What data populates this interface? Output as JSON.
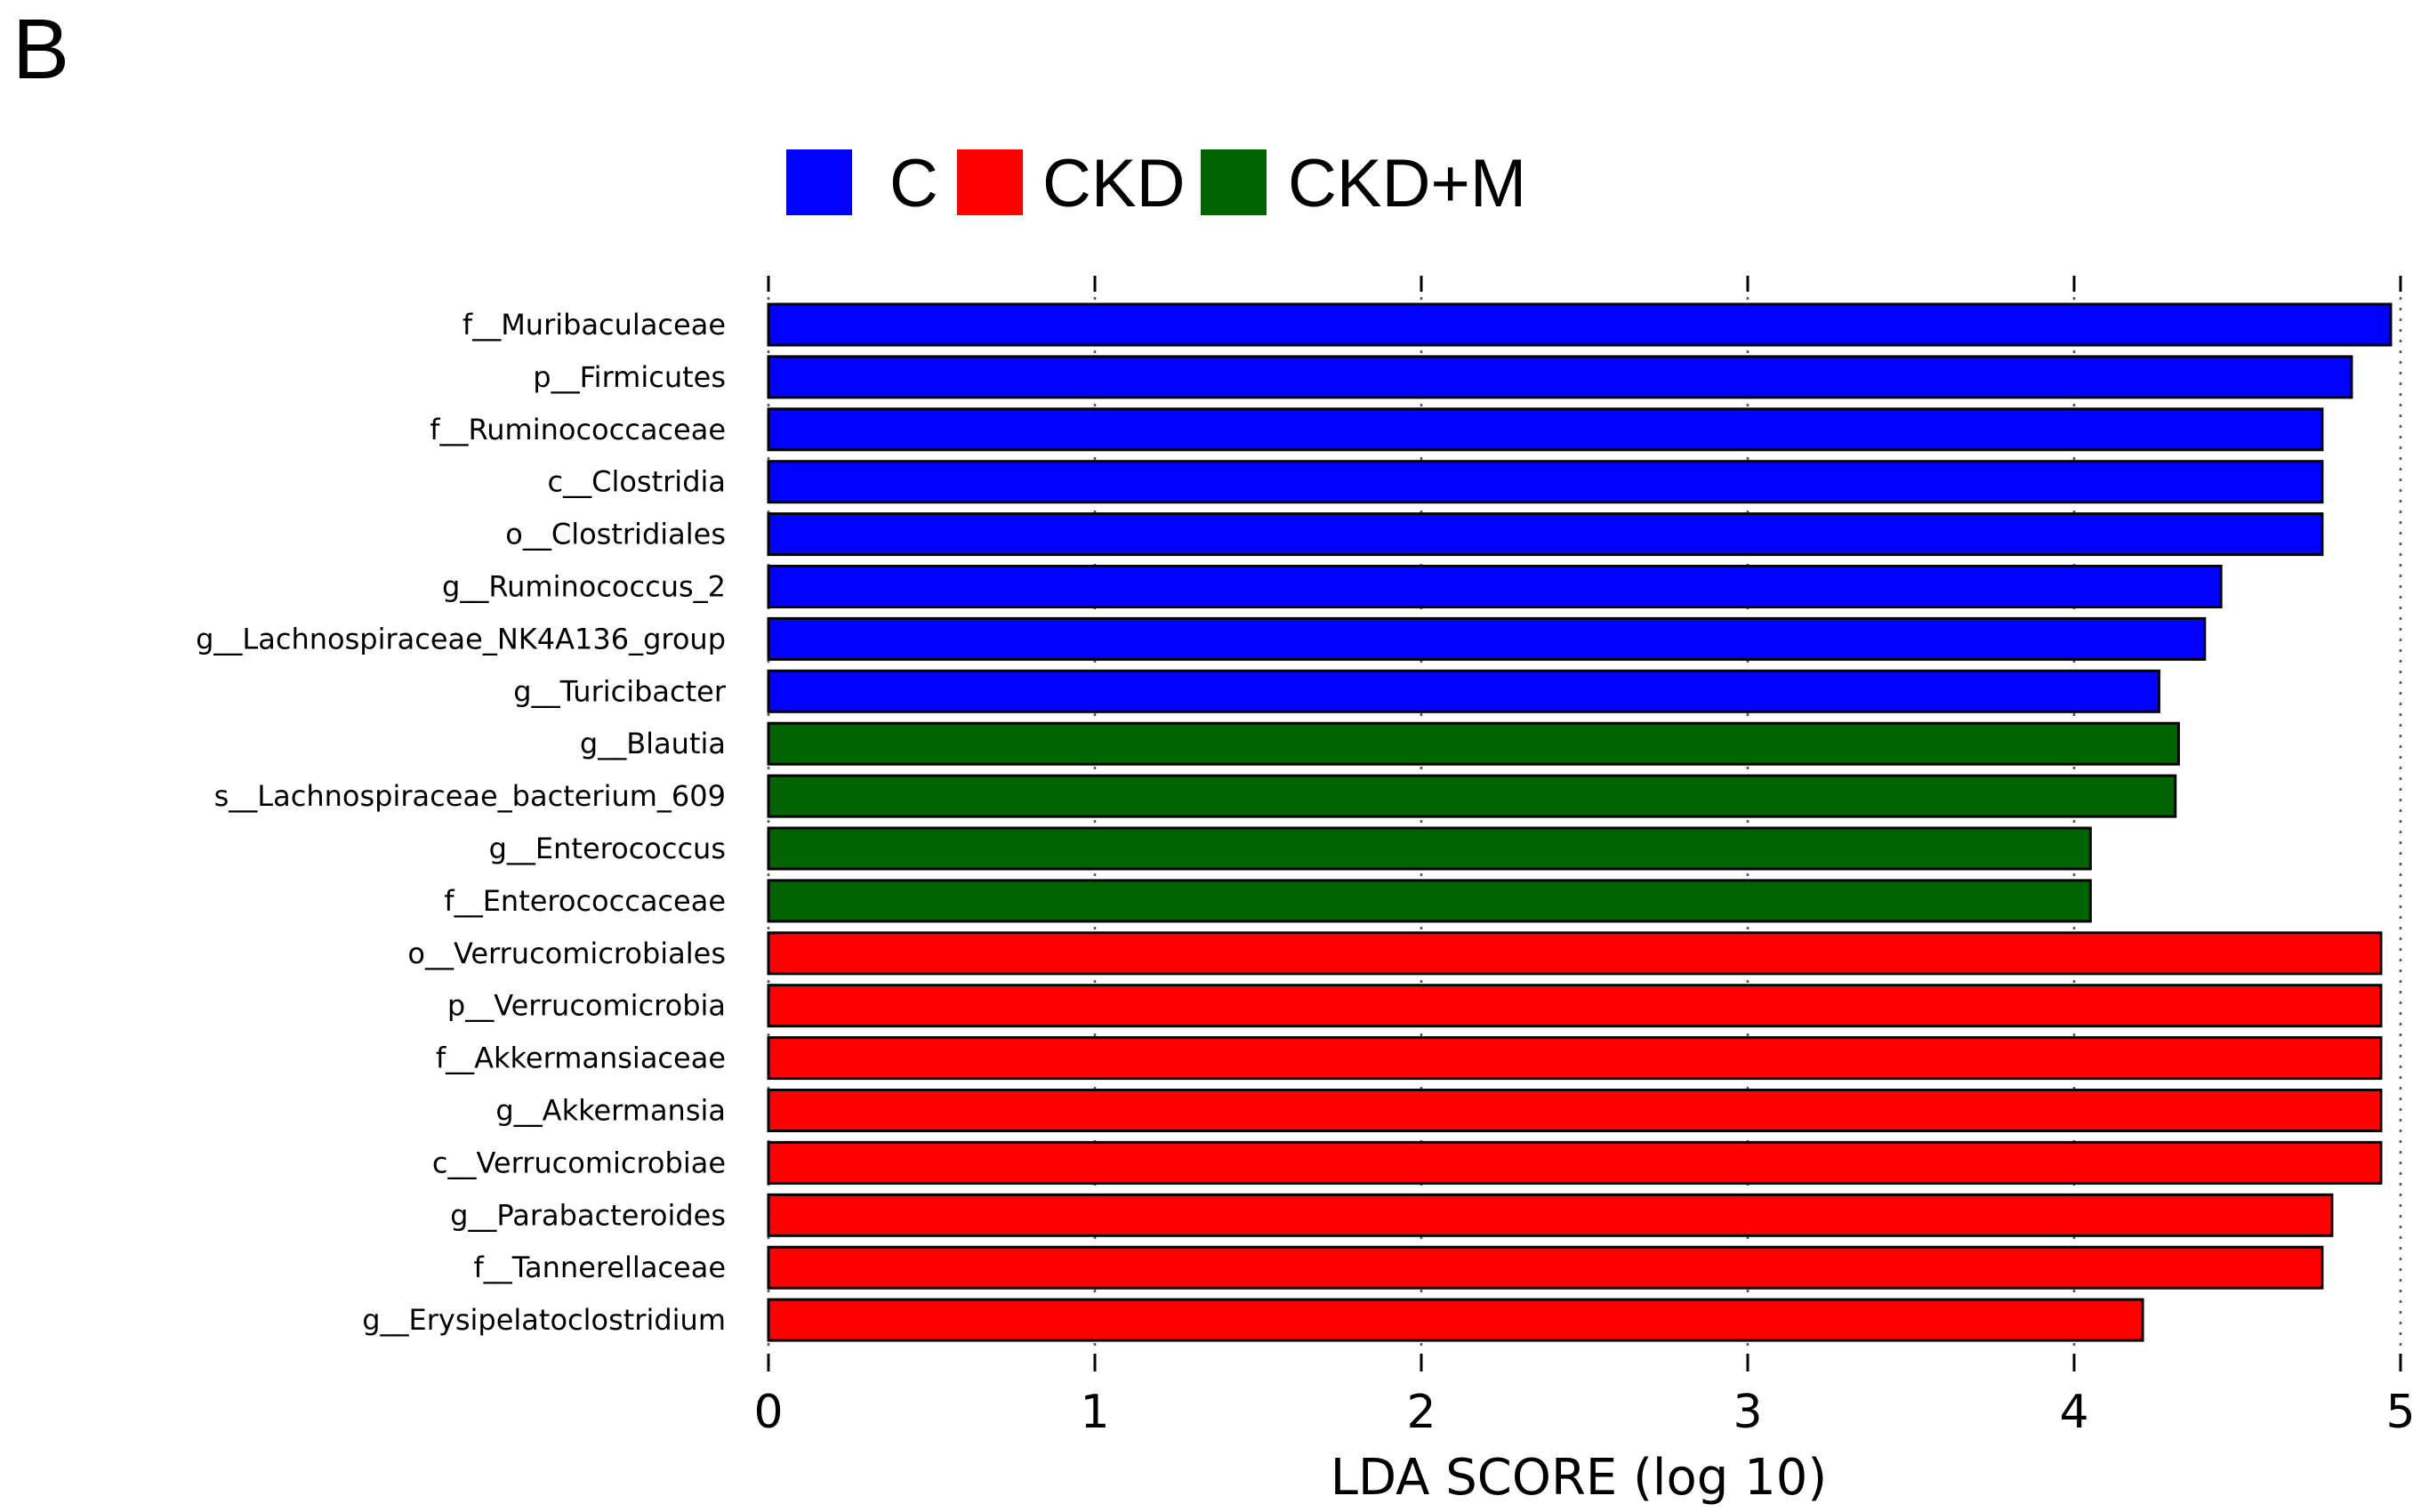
{
  "panel_label": "B",
  "colors": {
    "C": "#0000ff",
    "CKD": "#ff0000",
    "CKD+M": "#006400",
    "axis": "#000000",
    "grid": "#555555"
  },
  "chart_data": {
    "type": "bar",
    "orientation": "horizontal",
    "xlabel": "LDA SCORE (log 10)",
    "xlim": [
      0,
      5
    ],
    "xticks": [
      0,
      1,
      2,
      3,
      4,
      5
    ],
    "grid": true,
    "legend": [
      {
        "name": "C",
        "color": "#0000ff"
      },
      {
        "name": "CKD",
        "color": "#ff0000"
      },
      {
        "name": "CKD+M",
        "color": "#006400"
      }
    ],
    "legend_position": "top-center",
    "bars": [
      {
        "label": "f__Muribaculaceae",
        "value": 4.97,
        "group": "C"
      },
      {
        "label": "p__Firmicutes",
        "value": 4.85,
        "group": "C"
      },
      {
        "label": "f__Ruminococcaceae",
        "value": 4.76,
        "group": "C"
      },
      {
        "label": "c__Clostridia",
        "value": 4.76,
        "group": "C"
      },
      {
        "label": "o__Clostridiales",
        "value": 4.76,
        "group": "C"
      },
      {
        "label": "g__Ruminococcus_2",
        "value": 4.45,
        "group": "C"
      },
      {
        "label": "g__Lachnospiraceae_NK4A136_group",
        "value": 4.4,
        "group": "C"
      },
      {
        "label": "g__Turicibacter",
        "value": 4.26,
        "group": "C"
      },
      {
        "label": "g__Blautia",
        "value": 4.32,
        "group": "CKD+M"
      },
      {
        "label": "s__Lachnospiraceae_bacterium_609",
        "value": 4.31,
        "group": "CKD+M"
      },
      {
        "label": "g__Enterococcus",
        "value": 4.05,
        "group": "CKD+M"
      },
      {
        "label": "f__Enterococcaceae",
        "value": 4.05,
        "group": "CKD+M"
      },
      {
        "label": "o__Verrucomicrobiales",
        "value": 4.94,
        "group": "CKD"
      },
      {
        "label": "p__Verrucomicrobia",
        "value": 4.94,
        "group": "CKD"
      },
      {
        "label": "f__Akkermansiaceae",
        "value": 4.94,
        "group": "CKD"
      },
      {
        "label": "g__Akkermansia",
        "value": 4.94,
        "group": "CKD"
      },
      {
        "label": "c__Verrucomicrobiae",
        "value": 4.94,
        "group": "CKD"
      },
      {
        "label": "g__Parabacteroides",
        "value": 4.79,
        "group": "CKD"
      },
      {
        "label": "f__Tannerellaceae",
        "value": 4.76,
        "group": "CKD"
      },
      {
        "label": "g__Erysipelatoclostridium",
        "value": 4.21,
        "group": "CKD"
      }
    ]
  }
}
